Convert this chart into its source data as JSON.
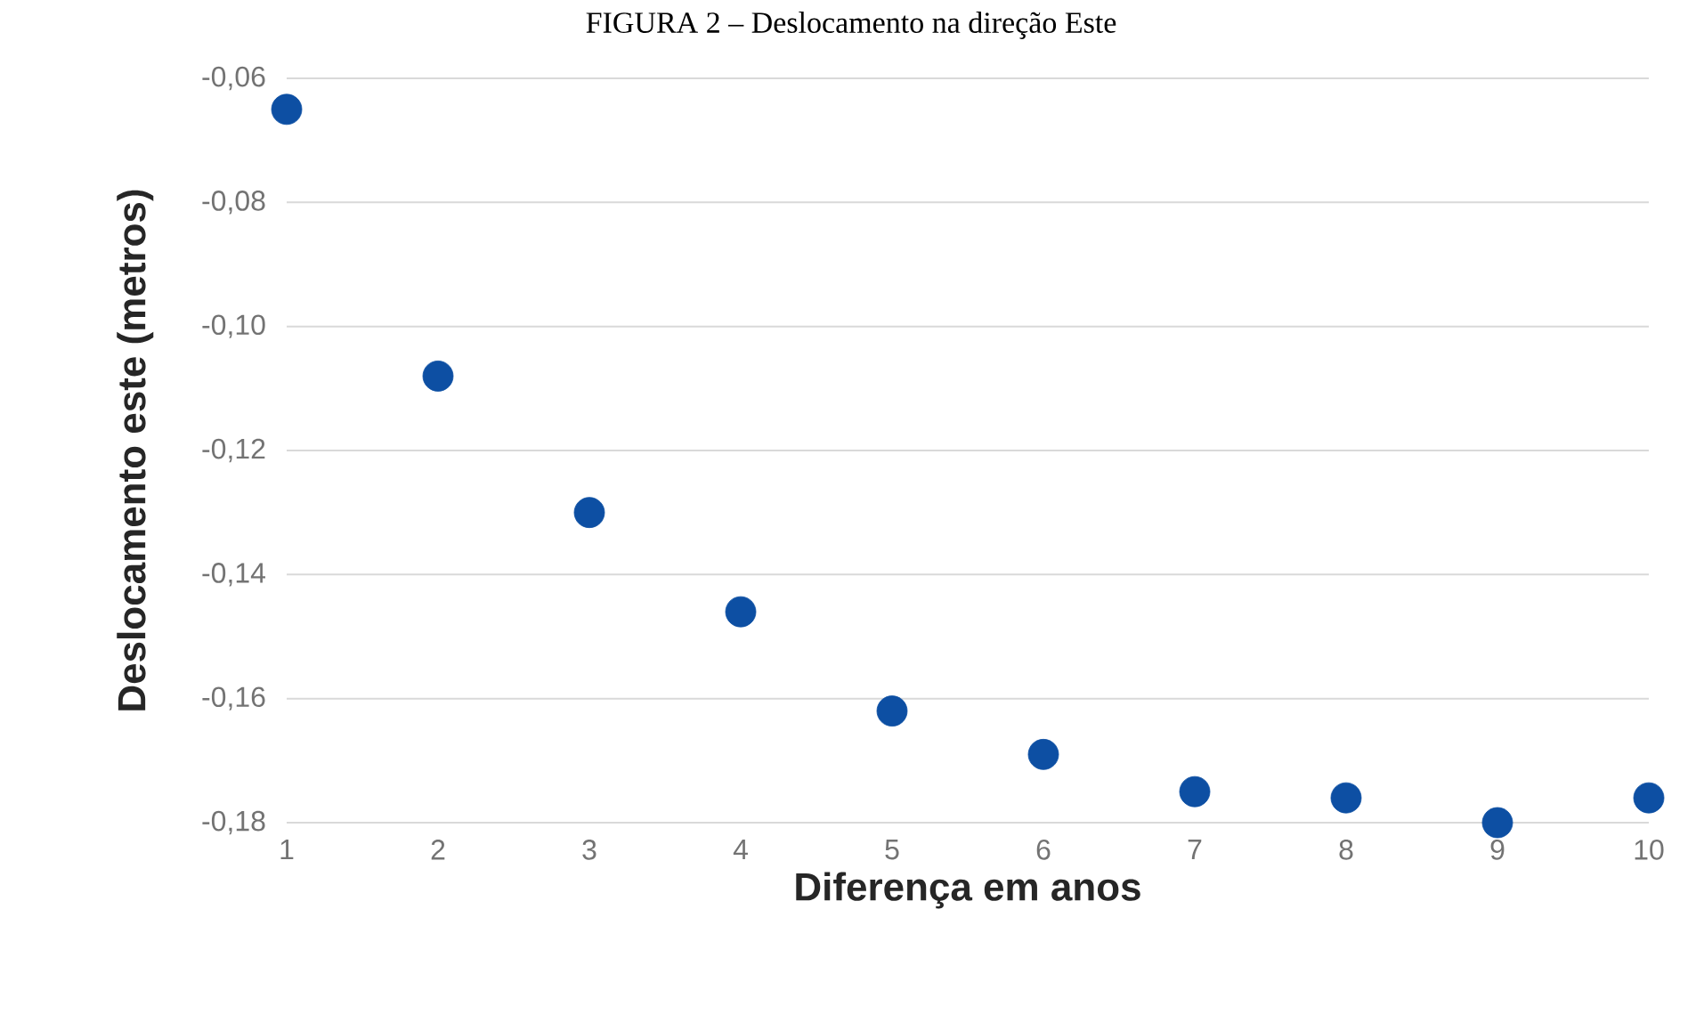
{
  "chart_data": {
    "type": "scatter",
    "title": "FIGURA 2 – Deslocamento na direção Este",
    "xlabel": "Diferença em anos",
    "ylabel": "Deslocamento este (metros)",
    "x": [
      1,
      2,
      3,
      4,
      5,
      6,
      7,
      8,
      9,
      10
    ],
    "values": [
      -0.065,
      -0.108,
      -0.13,
      -0.146,
      -0.162,
      -0.169,
      -0.175,
      -0.176,
      -0.18,
      -0.176
    ],
    "color": "#0d4fa3",
    "marker": "circle",
    "grid": "y",
    "xlim": [
      1,
      10
    ],
    "ylim": [
      -0.18,
      -0.06
    ],
    "xticks": [
      1,
      2,
      3,
      4,
      5,
      6,
      7,
      8,
      9,
      10
    ],
    "yticks": [
      {
        "value": -0.18,
        "label": "-0,18"
      },
      {
        "value": -0.16,
        "label": "-0,16"
      },
      {
        "value": -0.14,
        "label": "-0,14"
      },
      {
        "value": -0.12,
        "label": "-0,12"
      },
      {
        "value": -0.1,
        "label": "-0,10"
      },
      {
        "value": -0.08,
        "label": "-0,08"
      },
      {
        "value": -0.06,
        "label": "-0,06"
      }
    ]
  }
}
